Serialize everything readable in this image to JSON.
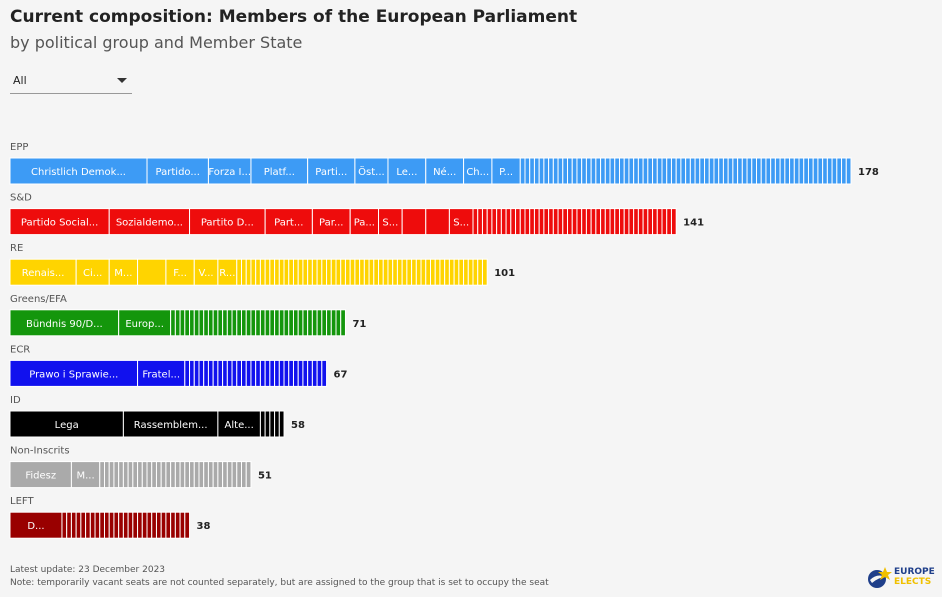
{
  "header": {
    "title": "Current composition: Members of the European Parliament",
    "subtitle": "by political group and Member State"
  },
  "filter": {
    "selected": "All"
  },
  "chart_data": {
    "type": "bar",
    "orientation": "horizontal",
    "stacked": true,
    "x_max": 178,
    "groups": [
      {
        "name": "EPP",
        "total": 178,
        "color": "#3d9bf5",
        "segments": [
          {
            "label": "Christlich Demok...",
            "seats": 29
          },
          {
            "label": "Partido...",
            "seats": 13
          },
          {
            "label": "Forza I...",
            "seats": 9
          },
          {
            "label": "Platf...",
            "seats": 12
          },
          {
            "label": "Parti...",
            "seats": 10
          },
          {
            "label": "Öst...",
            "seats": 7
          },
          {
            "label": "Le...",
            "seats": 8
          },
          {
            "label": "Né...",
            "seats": 8
          },
          {
            "label": "Ch...",
            "seats": 6
          },
          {
            "label": "P...",
            "seats": 6
          }
        ]
      },
      {
        "name": "S&D",
        "total": 141,
        "color": "#ee0c0c",
        "segments": [
          {
            "label": "Partido Social...",
            "seats": 21
          },
          {
            "label": "Sozialdemo...",
            "seats": 17
          },
          {
            "label": "Partito D...",
            "seats": 16
          },
          {
            "label": "Part...",
            "seats": 10
          },
          {
            "label": "Par...",
            "seats": 8
          },
          {
            "label": "Pa...",
            "seats": 6
          },
          {
            "label": "S...",
            "seats": 5
          },
          {
            "label": "",
            "seats": 5
          },
          {
            "label": "",
            "seats": 5
          },
          {
            "label": "S...",
            "seats": 5
          }
        ]
      },
      {
        "name": "RE",
        "total": 101,
        "color": "#ffd400",
        "segments": [
          {
            "label": "Renais...",
            "seats": 14
          },
          {
            "label": "Ci...",
            "seats": 7
          },
          {
            "label": "M...",
            "seats": 6
          },
          {
            "label": "",
            "seats": 6
          },
          {
            "label": "F...",
            "seats": 6
          },
          {
            "label": "V...",
            "seats": 5
          },
          {
            "label": "R...",
            "seats": 4
          }
        ]
      },
      {
        "name": "Greens/EFA",
        "total": 71,
        "color": "#14960c",
        "segments": [
          {
            "label": "Bündnis 90/D...",
            "seats": 23
          },
          {
            "label": "Europ...",
            "seats": 11
          }
        ]
      },
      {
        "name": "ECR",
        "total": 67,
        "color": "#1111ee",
        "segments": [
          {
            "label": "Prawo i Sprawie...",
            "seats": 27
          },
          {
            "label": "Fratel...",
            "seats": 10
          }
        ]
      },
      {
        "name": "ID",
        "total": 58,
        "color": "#000000",
        "segments": [
          {
            "label": "Lega",
            "seats": 24
          },
          {
            "label": "Rassemblem...",
            "seats": 20
          },
          {
            "label": "Alte...",
            "seats": 9
          }
        ]
      },
      {
        "name": "Non-Inscrits",
        "total": 51,
        "color": "#aaaaaa",
        "segments": [
          {
            "label": "Fidesz",
            "seats": 13
          },
          {
            "label": "M...",
            "seats": 6
          }
        ]
      },
      {
        "name": "LEFT",
        "total": 38,
        "color": "#990000",
        "segments": [
          {
            "label": "D...",
            "seats": 11
          }
        ]
      }
    ]
  },
  "footer": {
    "update": "Latest update: 23 December 2023",
    "note": "Note: temporarily vacant seats are not counted separately, but are assigned to the group that is set to occupy the seat"
  },
  "logo": {
    "line1": "EUROPE",
    "line2": "ELECTS"
  }
}
